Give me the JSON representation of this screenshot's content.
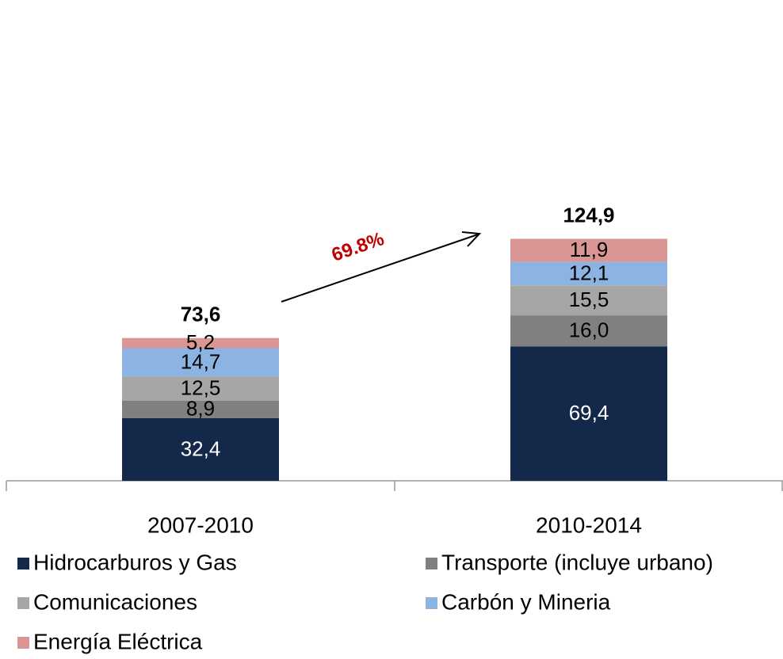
{
  "chart_data": {
    "type": "stacked_bar",
    "categories": [
      "2007-2010",
      "2010-2014"
    ],
    "series": [
      {
        "name": "Hidrocarburos y Gas",
        "color": "#14284a",
        "values": [
          32.4,
          69.4
        ],
        "value_labels": [
          "32,4",
          "69,4"
        ]
      },
      {
        "name": "Transporte (incluye urbano)",
        "color": "#808080",
        "values": [
          8.9,
          16.0
        ],
        "value_labels": [
          "8,9",
          "16,0"
        ]
      },
      {
        "name": "Comunicaciones",
        "color": "#a6a6a6",
        "values": [
          12.5,
          15.5
        ],
        "value_labels": [
          "12,5",
          "15,5"
        ]
      },
      {
        "name": "Carbón y Mineria",
        "color": "#8db3e2",
        "values": [
          14.7,
          12.1
        ],
        "value_labels": [
          "14,7",
          "12,1"
        ]
      },
      {
        "name": "Energía Eléctrica",
        "color": "#d99694",
        "values": [
          5.2,
          11.9
        ],
        "value_labels": [
          "5,2",
          "11,9"
        ]
      }
    ],
    "totals": {
      "values": [
        73.6,
        124.9
      ],
      "value_labels": [
        "73,6",
        "124,9"
      ]
    },
    "annotation": "69.8%",
    "ylim": [
      0,
      240
    ],
    "legend": "bottom"
  }
}
